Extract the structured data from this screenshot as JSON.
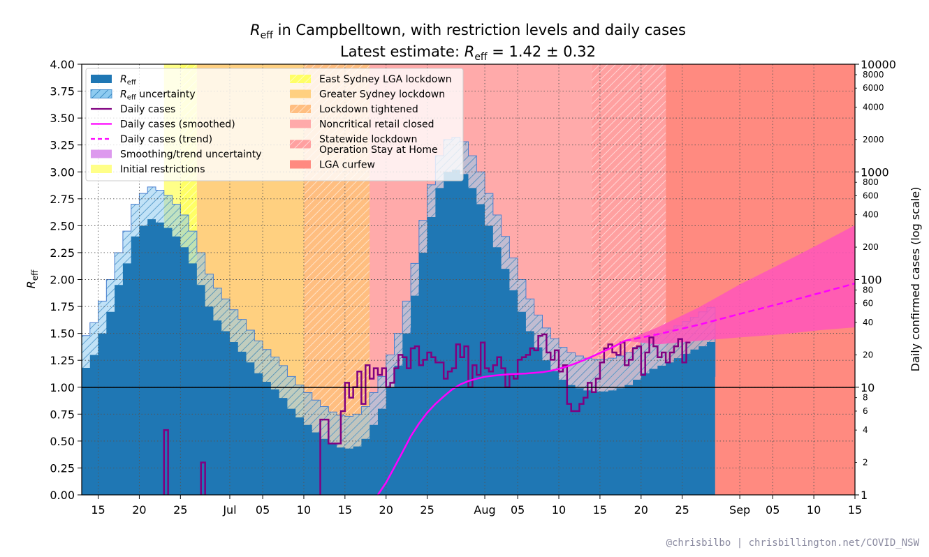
{
  "chart_data": {
    "type": "area",
    "title_symbol": "R",
    "title_subscript": "eff",
    "title_rest": " in Campbelltown, with restriction levels and daily cases",
    "subtitle_prefix": "Latest estimate: ",
    "subtitle_symbol": "R",
    "subtitle_subscript": "eff",
    "subtitle_rest": " = 1.42 ± 0.32",
    "ylabel_symbol": "R",
    "ylabel_subscript": "eff",
    "y2label": "Daily confirmed cases (log scale)",
    "ylim": [
      0,
      4
    ],
    "yticks": [
      "0.00",
      "0.25",
      "0.50",
      "0.75",
      "1.00",
      "1.25",
      "1.50",
      "1.75",
      "2.00",
      "2.25",
      "2.50",
      "2.75",
      "3.00",
      "3.25",
      "3.50",
      "3.75",
      "4.00"
    ],
    "y2lim": [
      1,
      10000
    ],
    "y2ticks_major": [
      "1",
      "10",
      "100",
      "1000",
      "10000"
    ],
    "y2ticks_minor": [
      "2",
      "4",
      "6",
      "8",
      "20",
      "40",
      "60",
      "80",
      "200",
      "400",
      "600",
      "800",
      "2000",
      "4000",
      "6000",
      "8000"
    ],
    "xlim": [
      "2021-06-13",
      "2021-09-15"
    ],
    "xticks": [
      {
        "date": "2021-06-15",
        "label": "15"
      },
      {
        "date": "2021-06-20",
        "label": "20"
      },
      {
        "date": "2021-06-25",
        "label": "25"
      },
      {
        "date": "2021-07-01",
        "label": "Jul"
      },
      {
        "date": "2021-07-05",
        "label": "05"
      },
      {
        "date": "2021-07-10",
        "label": "10"
      },
      {
        "date": "2021-07-15",
        "label": "15"
      },
      {
        "date": "2021-07-20",
        "label": "20"
      },
      {
        "date": "2021-07-25",
        "label": "25"
      },
      {
        "date": "2021-08-01",
        "label": "Aug"
      },
      {
        "date": "2021-08-05",
        "label": "05"
      },
      {
        "date": "2021-08-10",
        "label": "10"
      },
      {
        "date": "2021-08-15",
        "label": "15"
      },
      {
        "date": "2021-08-20",
        "label": "20"
      },
      {
        "date": "2021-08-25",
        "label": "25"
      },
      {
        "date": "2021-09-01",
        "label": "Sep"
      },
      {
        "date": "2021-09-05",
        "label": "05"
      },
      {
        "date": "2021-09-10",
        "label": "10"
      },
      {
        "date": "2021-09-15",
        "label": "15"
      }
    ],
    "grid": true,
    "reference_line": 1.0,
    "restrictions": [
      {
        "name": "Initial restrictions",
        "start": "2021-06-23",
        "end": "2021-06-27",
        "color": "#ffff88"
      },
      {
        "name": "East Sydney LGA lockdown",
        "start": "2021-06-25",
        "end": "2021-06-27",
        "color": "#ffff66",
        "hatch": true
      },
      {
        "name": "Greater Sydney lockdown",
        "start": "2021-06-27",
        "end": "2021-07-10",
        "color": "#ffd080"
      },
      {
        "name": "Lockdown tightened",
        "start": "2021-07-10",
        "end": "2021-07-26",
        "color": "#ffbe80",
        "hatch": true
      },
      {
        "name": "Noncritical retail closed",
        "start": "2021-07-18",
        "end": "2021-08-14",
        "color": "#ffaaaa"
      },
      {
        "name": "Statewide lockdown\nOperation Stay at Home",
        "start": "2021-08-14",
        "end": "2021-08-23",
        "color": "#ffa0a0",
        "hatch": true
      },
      {
        "name": "LGA curfew",
        "start": "2021-08-23",
        "end": "2021-09-15",
        "color": "#ff8a80"
      }
    ],
    "reff_start": "2021-06-13",
    "reff": [
      1.18,
      1.3,
      1.5,
      1.7,
      1.95,
      2.15,
      2.4,
      2.5,
      2.56,
      2.53,
      2.48,
      2.4,
      2.3,
      2.15,
      1.95,
      1.75,
      1.62,
      1.52,
      1.42,
      1.33,
      1.23,
      1.13,
      1.05,
      0.98,
      0.9,
      0.8,
      0.72,
      0.65,
      0.58,
      0.52,
      0.47,
      0.44,
      0.43,
      0.45,
      0.52,
      0.65,
      0.8,
      1.0,
      1.2,
      1.5,
      1.85,
      2.25,
      2.58,
      2.85,
      3.0,
      3.02,
      2.98,
      2.85,
      2.7,
      2.5,
      2.3,
      2.1,
      1.9,
      1.7,
      1.52,
      1.37,
      1.25,
      1.15,
      1.07,
      1.02,
      0.99,
      0.97,
      0.96,
      0.96,
      0.97,
      0.99,
      1.02,
      1.07,
      1.13,
      1.17,
      1.2,
      1.23,
      1.27,
      1.31,
      1.35,
      1.38,
      1.42
    ],
    "reff_upper": [
      1.48,
      1.6,
      1.8,
      2.0,
      2.25,
      2.45,
      2.7,
      2.8,
      2.86,
      2.83,
      2.78,
      2.7,
      2.6,
      2.45,
      2.25,
      2.05,
      1.92,
      1.82,
      1.72,
      1.63,
      1.53,
      1.43,
      1.35,
      1.28,
      1.2,
      1.1,
      1.02,
      0.95,
      0.88,
      0.82,
      0.77,
      0.74,
      0.73,
      0.75,
      0.82,
      0.95,
      1.1,
      1.3,
      1.5,
      1.8,
      2.15,
      2.55,
      2.88,
      3.15,
      3.3,
      3.32,
      3.28,
      3.15,
      3.0,
      2.8,
      2.6,
      2.4,
      2.2,
      2.0,
      1.82,
      1.67,
      1.55,
      1.45,
      1.37,
      1.32,
      1.29,
      1.27,
      1.26,
      1.26,
      1.27,
      1.29,
      1.32,
      1.37,
      1.43,
      1.47,
      1.5,
      1.53,
      1.57,
      1.61,
      1.65,
      1.7,
      1.74
    ],
    "reff_lower": [
      0.88,
      1.0,
      1.2,
      1.4,
      1.65,
      1.85,
      2.1,
      2.2,
      2.26,
      2.23,
      2.18,
      2.1,
      2.0,
      1.85,
      1.65,
      1.45,
      1.32,
      1.22,
      1.12,
      1.03,
      0.93,
      0.83,
      0.75,
      0.68,
      0.6,
      0.5,
      0.42,
      0.35,
      0.28,
      0.22,
      0.17,
      0.14,
      0.13,
      0.15,
      0.22,
      0.35,
      0.5,
      0.7,
      0.9,
      1.2,
      1.55,
      1.95,
      2.28,
      2.55,
      2.7,
      2.72,
      2.68,
      2.55,
      2.4,
      2.2,
      2.0,
      1.8,
      1.6,
      1.4,
      1.22,
      1.07,
      0.95,
      0.85,
      0.77,
      0.72,
      0.69,
      0.67,
      0.66,
      0.66,
      0.67,
      0.69,
      0.72,
      0.77,
      0.83,
      0.87,
      0.9,
      0.93,
      0.97,
      1.01,
      1.05,
      1.08,
      1.1
    ],
    "cases_start": "2021-06-13",
    "daily_cases": [
      0,
      0,
      0,
      0,
      0,
      0,
      0,
      0,
      0,
      0,
      0,
      0,
      0,
      0,
      0,
      0,
      0,
      0,
      0,
      0,
      4,
      0,
      0,
      0,
      0,
      0,
      0,
      0,
      0,
      2,
      0,
      0,
      0,
      0,
      0,
      0,
      0,
      0,
      0,
      0,
      0,
      0,
      0,
      0,
      0,
      0,
      0,
      0,
      0,
      0,
      0,
      0,
      0,
      0,
      0,
      0,
      0,
      0,
      5,
      5,
      3,
      3,
      3,
      6,
      11,
      8,
      10,
      14,
      7,
      16,
      12,
      15,
      13,
      15,
      10,
      11,
      15,
      20,
      19,
      15,
      23,
      24,
      16,
      18,
      21,
      19,
      17,
      17,
      12,
      14,
      15,
      25,
      19,
      24,
      10,
      16,
      13,
      26,
      15,
      14,
      16,
      19,
      15,
      10,
      13,
      12,
      18,
      19,
      20,
      23,
      22,
      30,
      31,
      21,
      18,
      22,
      14,
      16,
      7,
      6,
      6,
      7,
      8,
      11,
      9,
      12,
      17,
      23,
      25,
      21,
      20,
      26,
      16,
      18,
      23,
      24,
      13,
      21,
      29,
      24,
      19,
      21,
      17,
      21,
      24,
      28,
      17,
      26
    ],
    "smoothed": [
      [
        0,
        0
      ],
      [
        1,
        0
      ],
      [
        2,
        0
      ],
      [
        3,
        0
      ],
      [
        4,
        0
      ],
      [
        5,
        0
      ],
      [
        6,
        0
      ],
      [
        7,
        0
      ],
      [
        8,
        0
      ],
      [
        9,
        0
      ],
      [
        10,
        0
      ],
      [
        11,
        0
      ],
      [
        12,
        0
      ],
      [
        13,
        0
      ],
      [
        14,
        0
      ],
      [
        15,
        0
      ],
      [
        16,
        0
      ],
      [
        17,
        0
      ],
      [
        18,
        0
      ],
      [
        19,
        0
      ],
      [
        20,
        0
      ],
      [
        21,
        0
      ],
      [
        22,
        0
      ],
      [
        23,
        0
      ],
      [
        24,
        0
      ],
      [
        25,
        0
      ],
      [
        26,
        0
      ],
      [
        27,
        0
      ],
      [
        28,
        0
      ],
      [
        29,
        0
      ],
      [
        30,
        0
      ],
      [
        31,
        0
      ],
      [
        32,
        0
      ],
      [
        33,
        0
      ],
      [
        34,
        0
      ],
      [
        35,
        0
      ],
      [
        36,
        1.0
      ],
      [
        37,
        1.3
      ],
      [
        38,
        1.8
      ],
      [
        39,
        2.5
      ],
      [
        40,
        3.5
      ],
      [
        41,
        4.6
      ],
      [
        42,
        5.8
      ],
      [
        43,
        7.0
      ],
      [
        44,
        8.2
      ],
      [
        45,
        9.5
      ],
      [
        46,
        10.6
      ],
      [
        47,
        11.4
      ],
      [
        48,
        12.0
      ],
      [
        49,
        12.5
      ],
      [
        50,
        12.8
      ],
      [
        51,
        13.0
      ],
      [
        52,
        13.2
      ],
      [
        53,
        13.3
      ],
      [
        54,
        13.4
      ],
      [
        55,
        13.6
      ],
      [
        56,
        13.8
      ],
      [
        57,
        14.2
      ],
      [
        58,
        14.8
      ],
      [
        59,
        15.6
      ],
      [
        60,
        16.6
      ],
      [
        61,
        17.8
      ],
      [
        62,
        19.2
      ],
      [
        63,
        20.8
      ],
      [
        64,
        22.5
      ],
      [
        65,
        24.5
      ],
      [
        66,
        27.0
      ]
    ],
    "trend": [
      [
        66,
        27.0
      ],
      [
        70,
        31.0
      ],
      [
        75,
        38.0
      ],
      [
        80,
        48.0
      ],
      [
        85,
        60.0
      ],
      [
        90,
        76.0
      ],
      [
        94,
        92.0
      ],
      [
        99,
        120.0
      ],
      [
        104,
        160.0
      ]
    ],
    "trend_upper": [
      [
        66,
        27.0
      ],
      [
        70,
        36.0
      ],
      [
        75,
        55.0
      ],
      [
        80,
        90.0
      ],
      [
        85,
        140.0
      ],
      [
        90,
        220.0
      ],
      [
        94,
        320.0
      ],
      [
        99,
        500.0
      ],
      [
        104,
        780.0
      ]
    ],
    "trend_lower": [
      [
        66,
        27.0
      ],
      [
        70,
        25.0
      ],
      [
        75,
        27.0
      ],
      [
        80,
        29.0
      ],
      [
        85,
        31.0
      ],
      [
        90,
        34.0
      ],
      [
        94,
        36.0
      ],
      [
        99,
        40.0
      ],
      [
        104,
        44.0
      ]
    ],
    "legend": [
      {
        "label_symbol": "R",
        "label_subscript": "eff",
        "label_rest": "",
        "swatch": "patch",
        "color": "#1f77b4"
      },
      {
        "label_symbol": "R",
        "label_subscript": "eff",
        "label_rest": " uncertainty",
        "swatch": "hatchpatch",
        "color": "#8ecbf0"
      },
      {
        "label_symbol": "",
        "label_subscript": "",
        "label_rest": "Daily cases",
        "swatch": "line",
        "color": "#800080"
      },
      {
        "label_symbol": "",
        "label_subscript": "",
        "label_rest": "Daily cases (smoothed)",
        "swatch": "line",
        "color": "#ff00ff"
      },
      {
        "label_symbol": "",
        "label_subscript": "",
        "label_rest": "Daily cases (trend)",
        "swatch": "dash",
        "color": "#ff00ff"
      },
      {
        "label_symbol": "",
        "label_subscript": "",
        "label_rest": "Smoothing/trend uncertainty",
        "swatch": "patch",
        "color": "#dd99ee"
      },
      {
        "label_symbol": "",
        "label_subscript": "",
        "label_rest": "Initial restrictions",
        "swatch": "patch",
        "color": "#ffff88"
      },
      {
        "label_symbol": "",
        "label_subscript": "",
        "label_rest": "East Sydney LGA lockdown",
        "swatch": "hatchpatch",
        "color": "#ffff66"
      },
      {
        "label_symbol": "",
        "label_subscript": "",
        "label_rest": "Greater Sydney lockdown",
        "swatch": "patch",
        "color": "#ffd080"
      },
      {
        "label_symbol": "",
        "label_subscript": "",
        "label_rest": "Lockdown tightened",
        "swatch": "hatchpatch",
        "color": "#ffbe80"
      },
      {
        "label_symbol": "",
        "label_subscript": "",
        "label_rest": "Noncritical retail closed",
        "swatch": "patch",
        "color": "#ffaaaa"
      },
      {
        "label_symbol": "",
        "label_subscript": "",
        "label_rest": "Statewide lockdown\nOperation Stay at Home",
        "swatch": "hatchpatch",
        "color": "#ffa0a0"
      },
      {
        "label_symbol": "",
        "label_subscript": "",
        "label_rest": "LGA curfew",
        "swatch": "patch",
        "color": "#ff8a80"
      }
    ],
    "colors": {
      "reff": "#1f77b4",
      "reff_uncertainty": "#8ecbf0",
      "daily_cases": "#800080",
      "smoothed": "#ff00ff",
      "trend_band": "#ff55bb"
    }
  },
  "credit": "@chrisbilbo | chrisbillington.net/COVID_NSW"
}
